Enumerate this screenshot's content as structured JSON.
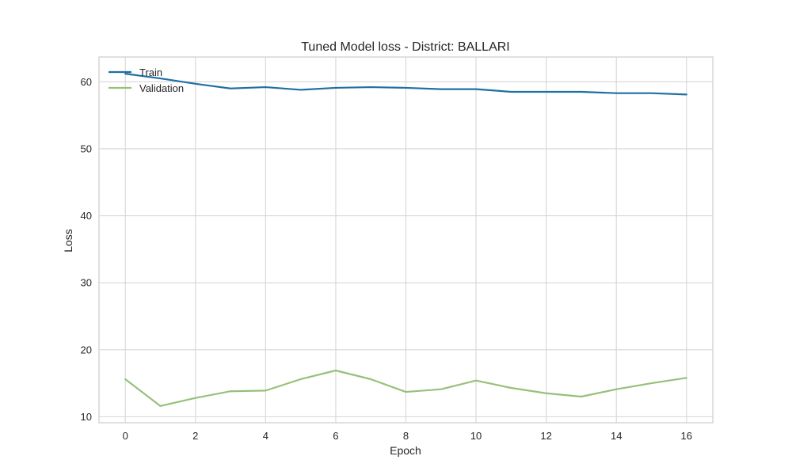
{
  "chart_data": {
    "type": "line",
    "title": "Tuned Model loss - District: BALLARI",
    "xlabel": "Epoch",
    "ylabel": "Loss",
    "x": [
      0,
      1,
      2,
      3,
      4,
      5,
      6,
      7,
      8,
      9,
      10,
      11,
      12,
      13,
      14,
      15,
      16
    ],
    "xlim": [
      -0.75,
      16.75
    ],
    "ylim": [
      9.1,
      63.7
    ],
    "xticks": [
      0,
      2,
      4,
      6,
      8,
      10,
      12,
      14,
      16
    ],
    "yticks": [
      10,
      20,
      30,
      40,
      50,
      60
    ],
    "grid": true,
    "legend_position": "top-left",
    "series": [
      {
        "name": "Train",
        "color": "#1f6fa3",
        "values": [
          61.2,
          60.5,
          59.7,
          59.0,
          59.2,
          58.8,
          59.1,
          59.2,
          59.1,
          58.9,
          58.9,
          58.5,
          58.5,
          58.5,
          58.3,
          58.3,
          58.1
        ]
      },
      {
        "name": "Validation",
        "color": "#97c07a",
        "values": [
          15.6,
          11.6,
          12.8,
          13.8,
          13.9,
          15.6,
          16.9,
          15.6,
          13.7,
          14.1,
          15.4,
          14.3,
          13.5,
          13.0,
          14.1,
          15.0,
          15.8
        ]
      }
    ]
  }
}
